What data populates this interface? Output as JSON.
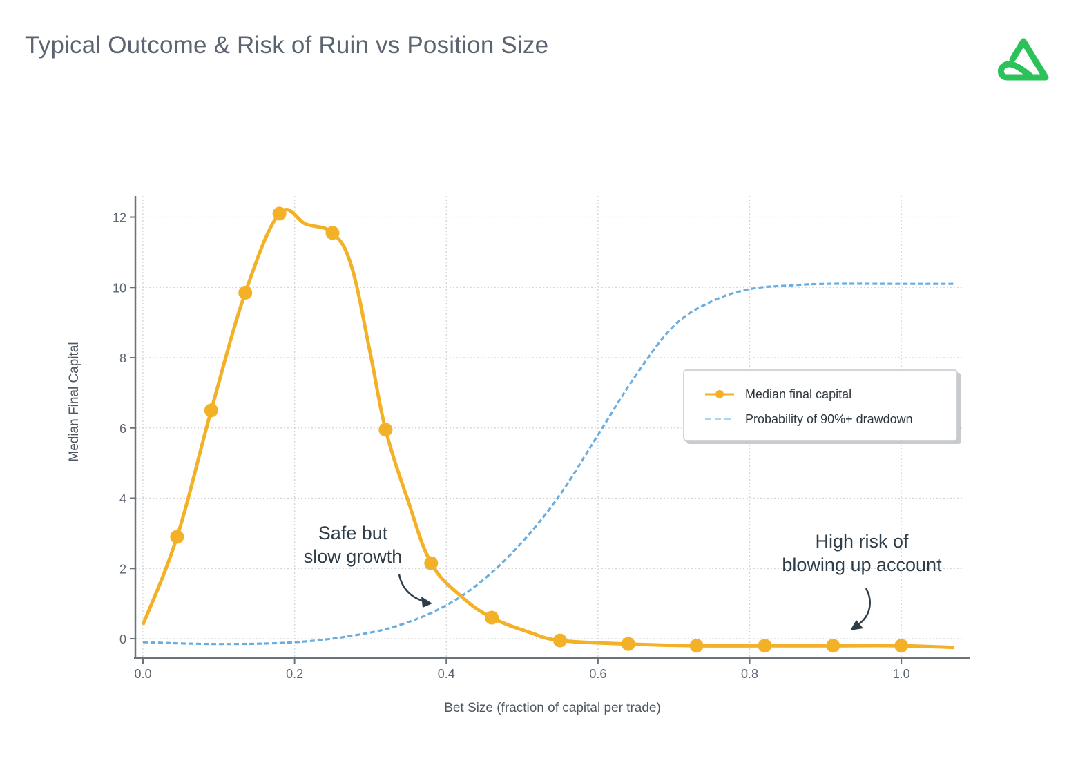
{
  "page": {
    "title": "Typical Outcome & Risk of Ruin vs Position Size",
    "logo_icon": "green-triangle-loop-logo"
  },
  "colors": {
    "median_line": "#f2b127",
    "drawdown_line": "#6aaee0",
    "title": "#5b6470",
    "axis": "#6b7278",
    "grid": "#cfd3d6",
    "annotation": "#2e3d48",
    "logo": "#2bc25a"
  },
  "chart_data": {
    "type": "line",
    "title": "",
    "xlabel": "Bet Size (fraction of capital per trade)",
    "ylabel": "Median Final Capital",
    "xlim": [
      -0.01,
      1.08
    ],
    "ylim": [
      -0.55,
      12.6
    ],
    "grid": true,
    "legend_position": "center-right",
    "x_ticks": [
      0.0,
      0.2,
      0.4,
      0.6,
      0.8,
      1.0
    ],
    "x_tick_labels": [
      "0.0",
      "0.2",
      "0.4",
      "0.6",
      "0.8",
      "1.0"
    ],
    "y_ticks": [
      0,
      2,
      4,
      6,
      8,
      10,
      12
    ],
    "y_tick_labels": [
      "0",
      "2",
      "4",
      "6",
      "8",
      "10",
      "12"
    ],
    "series": [
      {
        "name": "Median final capital",
        "style": "solid-with-markers",
        "color": "#f2b127",
        "x": [
          0.0,
          0.045,
          0.09,
          0.135,
          0.18,
          0.25,
          0.32,
          0.38,
          0.46,
          0.55,
          0.64,
          0.73,
          0.82,
          0.91,
          1.0
        ],
        "y": [
          0.4,
          2.9,
          6.5,
          9.85,
          12.1,
          11.55,
          5.95,
          2.15,
          0.6,
          -0.05,
          -0.15,
          -0.2,
          -0.2,
          -0.2,
          -0.2
        ],
        "line_x": [
          0.0,
          0.045,
          0.09,
          0.135,
          0.18,
          0.215,
          0.25,
          0.275,
          0.3,
          0.32,
          0.35,
          0.38,
          0.42,
          0.46,
          0.51,
          0.55,
          0.64,
          0.73,
          0.82,
          0.91,
          1.0,
          1.07
        ],
        "line_y": [
          0.4,
          2.9,
          6.5,
          9.85,
          12.1,
          11.8,
          11.55,
          10.6,
          8.1,
          5.95,
          3.9,
          2.15,
          1.2,
          0.6,
          0.18,
          -0.05,
          -0.15,
          -0.2,
          -0.2,
          -0.2,
          -0.2,
          -0.25
        ],
        "marker_x": [
          0.045,
          0.09,
          0.135,
          0.18,
          0.25,
          0.32,
          0.38,
          0.46,
          0.55,
          0.64,
          0.73,
          0.82,
          0.91,
          1.0
        ],
        "marker_y": [
          2.9,
          6.5,
          9.85,
          12.1,
          11.55,
          5.95,
          2.15,
          0.6,
          -0.05,
          -0.15,
          -0.2,
          -0.2,
          -0.2,
          -0.2
        ]
      },
      {
        "name": "Probability of 90%+ drawdown",
        "style": "dashed",
        "color": "#6aaee0",
        "x": [
          0.0,
          0.1,
          0.2,
          0.28,
          0.34,
          0.4,
          0.45,
          0.5,
          0.55,
          0.6,
          0.65,
          0.7,
          0.75,
          0.8,
          0.85,
          0.9,
          1.0,
          1.07
        ],
        "y": [
          -0.1,
          -0.15,
          -0.1,
          0.1,
          0.4,
          0.95,
          1.7,
          2.75,
          4.1,
          5.8,
          7.5,
          8.9,
          9.6,
          9.95,
          10.05,
          10.1,
          10.1,
          10.1
        ]
      }
    ],
    "annotations": [
      {
        "lines": [
          "Safe but",
          "slow growth"
        ]
      },
      {
        "lines": [
          "High risk of",
          "blowing up account"
        ]
      }
    ],
    "legend": [
      {
        "label": "Median final capital"
      },
      {
        "label": "Probability of 90%+ drawdown"
      }
    ]
  }
}
